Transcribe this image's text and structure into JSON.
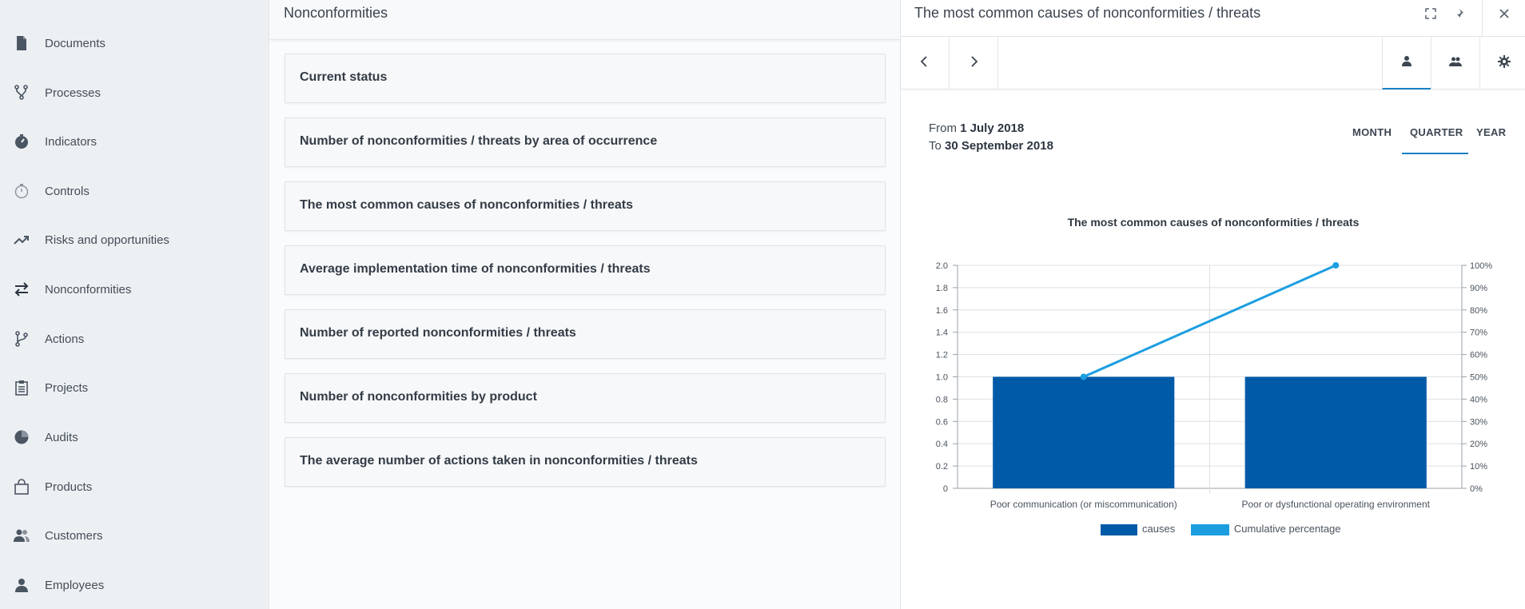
{
  "sidebar": {
    "items": [
      {
        "label": "Documents",
        "icon": "document-icon"
      },
      {
        "label": "Processes",
        "icon": "process-icon"
      },
      {
        "label": "Indicators",
        "icon": "indicator-icon"
      },
      {
        "label": "Controls",
        "icon": "stopwatch-icon"
      },
      {
        "label": "Risks and opportunities",
        "icon": "trend-icon"
      },
      {
        "label": "Nonconformities",
        "icon": "arrows-exchange-icon"
      },
      {
        "label": "Actions",
        "icon": "branch-icon"
      },
      {
        "label": "Projects",
        "icon": "clipboard-icon"
      },
      {
        "label": "Audits",
        "icon": "pie-icon"
      },
      {
        "label": "Products",
        "icon": "bag-icon"
      },
      {
        "label": "Customers",
        "icon": "users-icon"
      },
      {
        "label": "Employees",
        "icon": "user-icon"
      }
    ]
  },
  "middle": {
    "title": "Nonconformities",
    "cards": [
      "Current status",
      "Number of nonconformities / threats by area of occurrence",
      "The most common causes of nonconformities / threats",
      "Average implementation time of nonconformities / threats",
      "Number of reported nonconformities / threats",
      "Number of nonconformities by product",
      "The average number of actions taken in nonconformities / threats"
    ]
  },
  "right": {
    "title": "The most common causes of nonconformities / threats",
    "period": {
      "from_label": "From",
      "from_value": "1 July 2018",
      "to_label": "To",
      "to_value": "30 September 2018"
    },
    "range_tabs": {
      "month": "MONTH",
      "quarter": "QUARTER",
      "year": "YEAR",
      "selected": "QUARTER"
    }
  },
  "colors": {
    "bar": "#005aa8",
    "line": "#1b9ee0",
    "accent": "#1a7fc4"
  },
  "chart_data": {
    "type": "bar",
    "title": "The most common causes of nonconformities / threats",
    "categories": [
      "Poor communication (or miscommunication)",
      "Poor or dysfunctional operating environment"
    ],
    "series": [
      {
        "name": "causes",
        "type": "bar",
        "axis": "left",
        "values": [
          1,
          1
        ]
      },
      {
        "name": "Cumulative percentage",
        "type": "line",
        "axis": "right",
        "values": [
          50,
          100
        ]
      }
    ],
    "y_left": {
      "min": 0,
      "max": 2,
      "ticks": [
        "0",
        "0.2",
        "0.4",
        "0.6",
        "0.8",
        "1.0",
        "1.2",
        "1.4",
        "1.6",
        "1.8",
        "2.0"
      ]
    },
    "y_right": {
      "min": 0,
      "max": 100,
      "ticks": [
        "0%",
        "10%",
        "20%",
        "30%",
        "40%",
        "50%",
        "60%",
        "70%",
        "80%",
        "90%",
        "100%"
      ]
    },
    "grid": true,
    "legend_position": "bottom-center"
  }
}
